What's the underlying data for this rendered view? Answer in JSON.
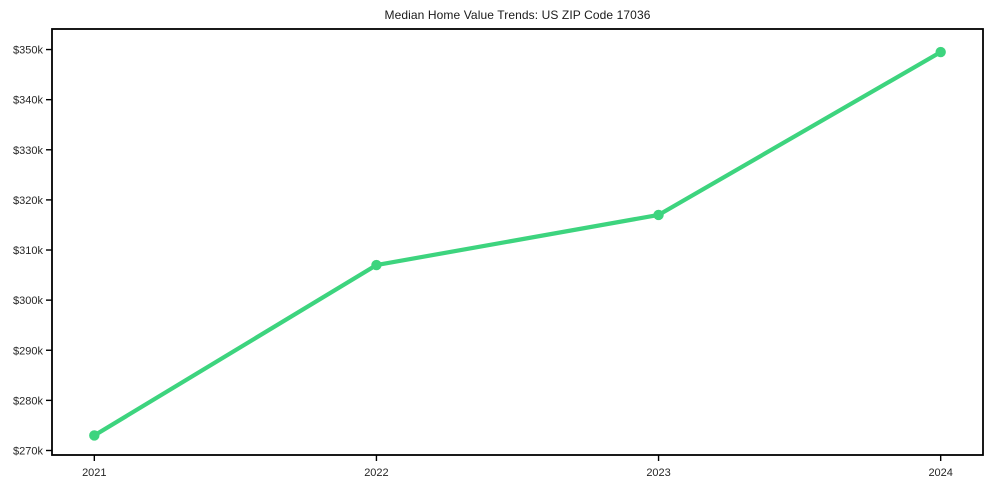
{
  "chart_data": {
    "type": "line",
    "title": "Median Home Value Trends: US ZIP Code 17036",
    "series_name": "Median Home Value",
    "x": [
      2021,
      2022,
      2023,
      2024
    ],
    "x_labels": [
      "2021",
      "2022",
      "2023",
      "2024"
    ],
    "values": [
      273000,
      307000,
      317000,
      349500
    ],
    "y_ticks": [
      {
        "value": 270000,
        "label": "$270k"
      },
      {
        "value": 280000,
        "label": "$280k"
      },
      {
        "value": 290000,
        "label": "$290k"
      },
      {
        "value": 300000,
        "label": "$300k"
      },
      {
        "value": 310000,
        "label": "$310k"
      },
      {
        "value": 320000,
        "label": "$320k"
      },
      {
        "value": 330000,
        "label": "$330k"
      },
      {
        "value": 340000,
        "label": "$340k"
      },
      {
        "value": 350000,
        "label": "$350k"
      }
    ],
    "xlim": [
      2020.85,
      2024.15
    ],
    "ylim": [
      269100,
      354100
    ],
    "grid": false,
    "legend": false,
    "colors": {
      "line": "#3dd47e",
      "marker": "#3dd47e",
      "axis": "#000000",
      "tick_text": "#262626",
      "background": "#ffffff"
    }
  }
}
